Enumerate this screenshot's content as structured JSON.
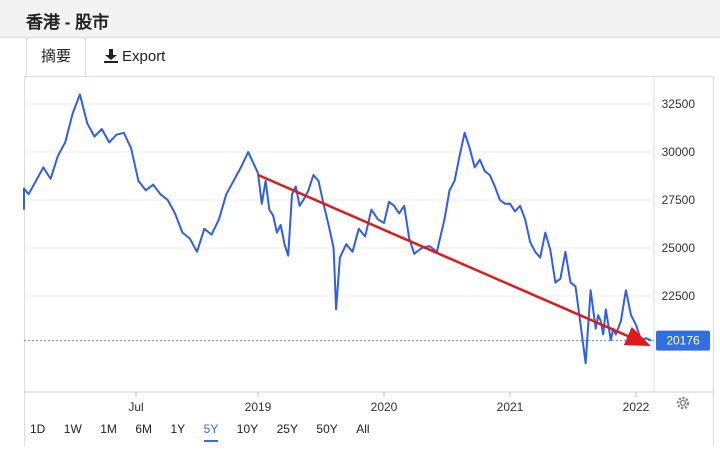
{
  "header": {
    "title": "香港 - 股市"
  },
  "tabs": [
    {
      "label": "摘要",
      "active": true
    },
    {
      "label": "Export",
      "icon": "download-icon"
    }
  ],
  "ranges": [
    "1D",
    "1W",
    "1M",
    "6M",
    "1Y",
    "5Y",
    "10Y",
    "25Y",
    "50Y",
    "All"
  ],
  "active_range": "5Y",
  "current_value_label": "20176",
  "colors": {
    "line": "#2f5ee8",
    "arrow": "#e01a1a",
    "badge": "#2f6fe0",
    "active": "#2f6fe0"
  },
  "chart_data": {
    "type": "line",
    "y_ticks": [
      "32500",
      "30000",
      "27500",
      "25000",
      "22500"
    ],
    "x_ticks": [
      "Jul",
      "2019",
      "2020",
      "2021",
      "2022"
    ],
    "ylim": [
      17800,
      33500
    ],
    "xlim": [
      2018.0,
      2022.15
    ],
    "current_value": 20176,
    "series": [
      {
        "x": [
          2018.0,
          2018.03,
          2018.06,
          2018.09,
          2018.12,
          2018.15,
          2018.18,
          2018.21,
          2018.24,
          2018.27,
          2018.3,
          2018.33,
          2018.36,
          2018.39,
          2018.42,
          2018.45,
          2018.48,
          2018.51,
          2018.54,
          2018.57,
          2018.6,
          2018.63,
          2018.66,
          2018.69,
          2018.72,
          2018.75,
          2018.78,
          2018.81,
          2018.84,
          2018.87,
          2018.9,
          2018.93,
          2018.96,
          2019.0,
          2019.03,
          2019.06,
          2019.09,
          2019.12,
          2019.15,
          2019.18,
          2019.21,
          2019.24,
          2019.27,
          2019.3,
          2019.33,
          2019.36,
          2019.4,
          2019.44,
          2019.48,
          2019.52,
          2019.56,
          2019.6,
          2019.62,
          2019.65,
          2019.7,
          2019.75,
          2019.8,
          2019.85,
          2019.9,
          2019.95,
          2020.0,
          2020.04,
          2020.08,
          2020.12,
          2020.16,
          2020.2,
          2020.24,
          2020.3,
          2020.36,
          2020.42,
          2020.48,
          2020.52,
          2020.56,
          2020.6,
          2020.64,
          2020.68,
          2020.72,
          2020.76,
          2020.8,
          2020.84,
          2020.88,
          2020.92,
          2020.96,
          2021.0,
          2021.04,
          2021.08,
          2021.12,
          2021.16,
          2021.2,
          2021.24,
          2021.28,
          2021.32,
          2021.36,
          2021.4,
          2021.44,
          2021.48,
          2021.52,
          2021.56,
          2021.6,
          2021.64,
          2021.68,
          2021.7,
          2021.72,
          2021.74,
          2021.76,
          2021.78,
          2021.8,
          2021.82,
          2021.84,
          2021.88,
          2021.92,
          2021.96,
          2022.0,
          2022.04,
          2022.08,
          2022.12
        ],
        "y": [
          27000,
          28100,
          27800,
          28500,
          29200,
          28600,
          29800,
          30500,
          32000,
          33000,
          31500,
          30800,
          31200,
          30500,
          30900,
          31000,
          30200,
          28500,
          28000,
          28300,
          27800,
          27500,
          26800,
          25800,
          25500,
          24800,
          26000,
          25700,
          26500,
          27800,
          28500,
          29200,
          30000,
          28900,
          27300,
          28500,
          27000,
          26700,
          25800,
          26200,
          25200,
          24600,
          27800,
          28200,
          27200,
          27500,
          28000,
          28800,
          28500,
          27300,
          26200,
          25000,
          21800,
          24500,
          25200,
          24800,
          26000,
          25600,
          27000,
          26500,
          26300,
          27400,
          27200,
          26800,
          27200,
          25500,
          24700,
          25000,
          25100,
          24800,
          26500,
          28000,
          28500,
          29800,
          31000,
          30200,
          29200,
          29600,
          29000,
          28800,
          28200,
          27500,
          27300,
          27300,
          26900,
          27200,
          26500,
          25300,
          24800,
          24500,
          25800,
          24900,
          23200,
          23400,
          24800,
          23200,
          23000,
          21000,
          19000,
          22800,
          20800,
          21500,
          21200,
          20500,
          21800,
          21000,
          20200,
          20800,
          20500,
          21200,
          22800,
          21500,
          21000,
          20200,
          20300,
          20176
        ]
      }
    ],
    "arrow": {
      "from": [
        2019.0,
        28800
      ],
      "to": [
        2022.08,
        20000
      ]
    }
  }
}
